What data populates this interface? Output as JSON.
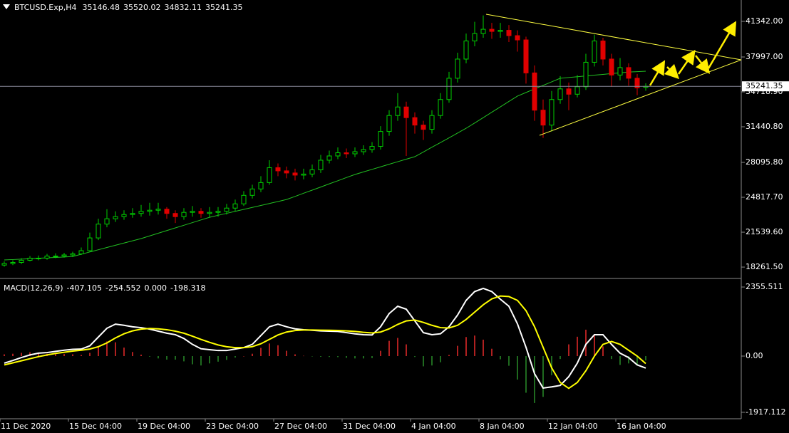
{
  "chart_data": [
    {
      "type": "candlestick",
      "symbol": "BTCUSD.Exp,H4",
      "categories": [
        "11 Dec 2020",
        null,
        null,
        null,
        null,
        null,
        null,
        null,
        "15 Dec 04:00",
        null,
        null,
        null,
        null,
        null,
        null,
        null,
        "19 Dec 04:00",
        null,
        null,
        null,
        null,
        null,
        null,
        null,
        "23 Dec 04:00",
        null,
        null,
        null,
        null,
        null,
        null,
        null,
        "27 Dec 04:00",
        null,
        null,
        null,
        null,
        null,
        null,
        null,
        "31 Dec 04:00",
        null,
        null,
        null,
        null,
        null,
        null,
        null,
        "4 Jan 04:00",
        null,
        null,
        null,
        null,
        null,
        null,
        null,
        "8 Jan 04:00",
        null,
        null,
        null,
        null,
        null,
        null,
        null,
        "12 Jan 04:00",
        null,
        null,
        null,
        null,
        null,
        null,
        null,
        "16 Jan 04:00",
        null,
        null,
        null
      ],
      "open": [
        18450,
        18600,
        18700,
        18900,
        19100,
        19100,
        19300,
        19300,
        19400,
        19500,
        19800,
        21000,
        22300,
        22800,
        23000,
        23200,
        23300,
        23500,
        23600,
        23700,
        23300,
        23000,
        23400,
        23500,
        23300,
        23400,
        23500,
        23800,
        24200,
        25000,
        25600,
        26200,
        27600,
        27300,
        27100,
        26900,
        27000,
        27400,
        28300,
        28700,
        29000,
        28900,
        29100,
        29300,
        29600,
        31000,
        32500,
        33300,
        32300,
        31600,
        31200,
        32500,
        34000,
        36000,
        37800,
        39500,
        40200,
        40600,
        40400,
        40500,
        40000,
        39600,
        36500,
        33000,
        31600,
        34000,
        35000,
        34500,
        35200,
        37500,
        39500,
        37800,
        36300,
        37000,
        36000,
        35146.48
      ],
      "high": [
        18800,
        18900,
        19100,
        19300,
        19350,
        19500,
        19550,
        19600,
        19700,
        20100,
        21500,
        22800,
        23700,
        23500,
        23600,
        23800,
        24100,
        24300,
        24300,
        23900,
        23600,
        23800,
        24000,
        23800,
        23900,
        23900,
        24200,
        24600,
        25400,
        26000,
        26800,
        28300,
        28000,
        27700,
        27500,
        27500,
        27900,
        28800,
        29200,
        29500,
        29400,
        29500,
        29700,
        30000,
        31500,
        33000,
        34600,
        33800,
        32800,
        32000,
        33000,
        34600,
        36600,
        38400,
        40200,
        41300,
        41900,
        41200,
        41200,
        41000,
        40500,
        39900,
        37200,
        34000,
        34800,
        36200,
        35600,
        36300,
        38300,
        40100,
        39800,
        38300,
        37900,
        37400,
        36400,
        35520.02
      ],
      "low": [
        18300,
        18450,
        18550,
        18800,
        18900,
        18950,
        19100,
        19150,
        19200,
        19400,
        19700,
        20800,
        22000,
        22500,
        22700,
        22900,
        23000,
        23100,
        23200,
        22800,
        22400,
        22700,
        23000,
        22900,
        22900,
        23000,
        23200,
        23500,
        24000,
        24700,
        25300,
        26000,
        26800,
        26600,
        26400,
        26500,
        26700,
        27100,
        28000,
        28400,
        28500,
        28600,
        28800,
        29000,
        29300,
        30600,
        32000,
        28700,
        30800,
        30200,
        30800,
        32200,
        33700,
        35600,
        37400,
        39000,
        39800,
        39700,
        39800,
        39400,
        38500,
        35500,
        32000,
        30400,
        31000,
        33600,
        33000,
        34200,
        34900,
        37100,
        37200,
        35200,
        35800,
        35300,
        34400,
        34832.11
      ],
      "close": [
        18600,
        18700,
        18900,
        19100,
        19100,
        19300,
        19300,
        19400,
        19500,
        19800,
        21000,
        22300,
        22800,
        23000,
        23200,
        23300,
        23500,
        23600,
        23700,
        23300,
        23000,
        23400,
        23500,
        23300,
        23400,
        23500,
        23800,
        24200,
        25000,
        25600,
        26200,
        27600,
        27300,
        27100,
        26900,
        27000,
        27400,
        28300,
        28700,
        29000,
        28900,
        29100,
        29300,
        29600,
        31000,
        32500,
        33300,
        32300,
        31600,
        31200,
        32500,
        34000,
        36000,
        37800,
        39500,
        40200,
        40600,
        40400,
        40500,
        40000,
        39600,
        36500,
        33000,
        31600,
        34000,
        35000,
        34500,
        35200,
        37500,
        39500,
        37800,
        36300,
        37000,
        36000,
        35100,
        35241.35
      ],
      "up_color": "#00d000",
      "down_color": "#e00000",
      "moving_average": {
        "color": "#22c022",
        "values": [
          18930,
          18970,
          19010,
          19050,
          19090,
          19130,
          19170,
          19210,
          19260,
          19470,
          19680,
          19890,
          20100,
          20310,
          20520,
          20730,
          20940,
          21190,
          21440,
          21690,
          21940,
          22190,
          22440,
          22690,
          22940,
          23125,
          23310,
          23495,
          23680,
          23865,
          24050,
          24235,
          24420,
          24610,
          24900,
          25200,
          25490,
          25780,
          26080,
          26370,
          26670,
          26960,
          27200,
          27440,
          27680,
          27920,
          28160,
          28400,
          28630,
          29070,
          29520,
          29960,
          30400,
          30850,
          31300,
          31800,
          32300,
          32810,
          33310,
          33820,
          34320,
          34660,
          35000,
          35330,
          35660,
          36000,
          36070,
          36140,
          36220,
          36290,
          36360,
          36440,
          36510,
          36580,
          36620,
          36660
        ]
      },
      "ylim": [
        17260,
        43349
      ],
      "yticks": [
        {
          "value": 41342,
          "label": "41342.00"
        },
        {
          "value": 37997,
          "label": "37997.00"
        },
        {
          "value": 34718.9,
          "label": "34718.90"
        },
        {
          "value": 31440.8,
          "label": "31440.80"
        },
        {
          "value": 28095.8,
          "label": "28095.80"
        },
        {
          "value": 24817.7,
          "label": "24817.70"
        },
        {
          "value": 21539.6,
          "label": "21539.60"
        },
        {
          "value": 18261.5,
          "label": "18261.50"
        }
      ],
      "price_line": true
    },
    {
      "type": "macd",
      "title": "MACD(12,26,9)",
      "readout": {
        "values": [
          0,
          -198.318
        ],
        "value_labels": [
          "0.000",
          "-198.318"
        ]
      },
      "series": [
        {
          "color": "#ffffff",
          "values": [
            -240,
            -150,
            -50,
            40,
            100,
            120,
            160,
            200,
            230,
            240,
            350,
            650,
            950,
            1090,
            1050,
            1000,
            970,
            920,
            850,
            780,
            730,
            600,
            400,
            250,
            220,
            190,
            190,
            240,
            290,
            400,
            700,
            1000,
            1090,
            1000,
            930,
            900,
            880,
            860,
            850,
            840,
            800,
            760,
            730,
            720,
            1000,
            1450,
            1700,
            1600,
            1200,
            800,
            730,
            760,
            1000,
            1400,
            1900,
            2200,
            2310,
            2200,
            1940,
            1700,
            1100,
            300,
            -600,
            -1090,
            -1050,
            -1000,
            -700,
            -240,
            400,
            730,
            730,
            400,
            100,
            -50,
            -300,
            -407.105
          ]
        },
        {
          "color": "#ffff00",
          "values": [
            -300,
            -230,
            -160,
            -90,
            -20,
            40,
            90,
            130,
            170,
            200,
            240,
            320,
            450,
            620,
            760,
            860,
            920,
            940,
            930,
            900,
            850,
            780,
            680,
            570,
            470,
            380,
            320,
            290,
            290,
            320,
            420,
            570,
            720,
            820,
            870,
            890,
            890,
            885,
            880,
            875,
            860,
            840,
            810,
            790,
            820,
            930,
            1080,
            1200,
            1230,
            1150,
            1050,
            970,
            960,
            1050,
            1250,
            1500,
            1750,
            1950,
            2050,
            2030,
            1900,
            1550,
            1000,
            300,
            -400,
            -900,
            -1100,
            -900,
            -500,
            0,
            400,
            500,
            400,
            200,
            0,
            -254.552
          ]
        }
      ],
      "histogram": {
        "up_color": "#b02020",
        "down_color": "#1f6a1f",
        "values": [
          60,
          80,
          110,
          130,
          120,
          80,
          70,
          70,
          60,
          40,
          110,
          330,
          500,
          470,
          290,
          140,
          50,
          -20,
          -80,
          -120,
          -120,
          -180,
          -280,
          -320,
          -250,
          -190,
          -130,
          -50,
          0,
          80,
          280,
          430,
          370,
          180,
          60,
          10,
          -10,
          -25,
          -30,
          -35,
          -60,
          -80,
          -80,
          -70,
          180,
          520,
          620,
          400,
          -30,
          -350,
          -320,
          -210,
          40,
          350,
          650,
          700,
          560,
          250,
          -110,
          -330,
          -800,
          -1250,
          -1600,
          -1390,
          -650,
          -100,
          400,
          660,
          900,
          730,
          330,
          -100,
          -300,
          -250,
          -300,
          -150
        ]
      },
      "ylim": [
        -2137,
        2623
      ],
      "yticks": [
        2355.511,
        {
          "value": 0,
          "label": "0.00"
        },
        -1917.112
      ]
    }
  ]
}
